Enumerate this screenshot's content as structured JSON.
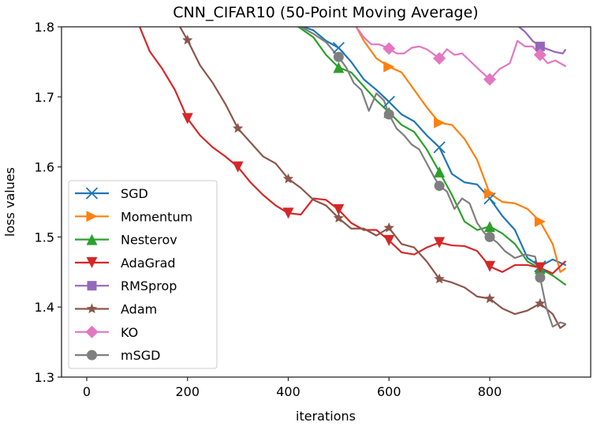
{
  "chart_data": {
    "type": "line",
    "title": "CNN_CIFAR10 (50-Point Moving Average)",
    "xlabel": "iterations",
    "ylabel": "loss values",
    "xlim": [
      -50,
      1000
    ],
    "ylim": [
      1.3,
      1.8
    ],
    "xticks": [
      0,
      200,
      400,
      600,
      800
    ],
    "xtick_labels": [
      "0",
      "200",
      "400",
      "600",
      "800"
    ],
    "yticks": [
      1.3,
      1.4,
      1.5,
      1.6,
      1.7,
      1.8
    ],
    "ytick_labels": [
      "1.3",
      "1.4",
      "1.5",
      "1.6",
      "1.7",
      "1.8"
    ],
    "grid": false,
    "legend_position": "lower-left",
    "series": [
      {
        "name": "SGD",
        "color": "#1f77b4",
        "marker": "x",
        "x": [
          430,
          450,
          475,
          500,
          525,
          550,
          575,
          600,
          625,
          650,
          675,
          700,
          725,
          750,
          775,
          800,
          825,
          850,
          875,
          900,
          925,
          950
        ],
        "y": [
          1.8,
          1.795,
          1.78,
          1.77,
          1.75,
          1.725,
          1.71,
          1.693,
          1.675,
          1.665,
          1.645,
          1.628,
          1.59,
          1.578,
          1.575,
          1.555,
          1.53,
          1.51,
          1.47,
          1.458,
          1.468,
          1.46
        ],
        "markers_x": [
          500,
          600,
          700,
          800,
          900
        ]
      },
      {
        "name": "Momentum",
        "color": "#ff7f0e",
        "marker": ">",
        "x": [
          535,
          550,
          575,
          600,
          625,
          650,
          675,
          700,
          725,
          750,
          775,
          800,
          825,
          850,
          875,
          900,
          925,
          940,
          950
        ],
        "y": [
          1.8,
          1.78,
          1.755,
          1.743,
          1.735,
          1.71,
          1.685,
          1.663,
          1.66,
          1.64,
          1.61,
          1.562,
          1.55,
          1.548,
          1.54,
          1.522,
          1.49,
          1.45,
          1.455
        ],
        "markers_x": [
          600,
          700,
          800,
          900
        ]
      },
      {
        "name": "Nesterov",
        "color": "#2ca02c",
        "marker": "^",
        "x": [
          420,
          450,
          475,
          500,
          525,
          550,
          575,
          600,
          625,
          650,
          675,
          700,
          725,
          750,
          775,
          800,
          825,
          850,
          875,
          900,
          925,
          950
        ],
        "y": [
          1.8,
          1.785,
          1.76,
          1.742,
          1.735,
          1.715,
          1.695,
          1.678,
          1.66,
          1.65,
          1.625,
          1.593,
          1.56,
          1.522,
          1.51,
          1.515,
          1.505,
          1.49,
          1.465,
          1.455,
          1.445,
          1.432
        ],
        "markers_x": [
          500,
          600,
          700,
          800,
          900
        ]
      },
      {
        "name": "AdaGrad",
        "color": "#d62728",
        "marker": "v",
        "x": [
          105,
          125,
          150,
          175,
          200,
          225,
          250,
          275,
          300,
          325,
          350,
          375,
          400,
          425,
          450,
          475,
          500,
          525,
          550,
          575,
          600,
          625,
          650,
          675,
          700,
          725,
          750,
          775,
          800,
          825,
          850,
          875,
          900,
          925,
          950
        ],
        "y": [
          1.8,
          1.765,
          1.74,
          1.71,
          1.669,
          1.645,
          1.628,
          1.615,
          1.6,
          1.578,
          1.56,
          1.545,
          1.534,
          1.532,
          1.555,
          1.553,
          1.539,
          1.52,
          1.51,
          1.51,
          1.495,
          1.478,
          1.475,
          1.485,
          1.492,
          1.488,
          1.487,
          1.48,
          1.458,
          1.45,
          1.46,
          1.46,
          1.456,
          1.448,
          1.465
        ],
        "markers_x": [
          200,
          300,
          400,
          500,
          600,
          700,
          800,
          900
        ]
      },
      {
        "name": "RMSprop",
        "color": "#9467bd",
        "marker": "s",
        "x": [
          858,
          870,
          885,
          900,
          915,
          930,
          945,
          950
        ],
        "y": [
          1.8,
          1.793,
          1.78,
          1.772,
          1.768,
          1.764,
          1.762,
          1.767
        ],
        "markers_x": [
          900
        ]
      },
      {
        "name": "Adam",
        "color": "#8c564b",
        "marker": "*",
        "x": [
          185,
          200,
          225,
          250,
          275,
          300,
          325,
          350,
          375,
          400,
          425,
          450,
          475,
          500,
          525,
          550,
          575,
          600,
          625,
          650,
          675,
          700,
          725,
          750,
          775,
          800,
          825,
          850,
          875,
          900,
          925,
          940,
          950
        ],
        "y": [
          1.8,
          1.781,
          1.745,
          1.72,
          1.69,
          1.655,
          1.635,
          1.615,
          1.605,
          1.583,
          1.57,
          1.553,
          1.545,
          1.527,
          1.512,
          1.512,
          1.502,
          1.513,
          1.49,
          1.485,
          1.465,
          1.44,
          1.435,
          1.428,
          1.415,
          1.412,
          1.398,
          1.39,
          1.395,
          1.405,
          1.39,
          1.37,
          1.375
        ],
        "markers_x": [
          200,
          300,
          400,
          500,
          600,
          700,
          800,
          900
        ]
      },
      {
        "name": "KO",
        "color": "#e377c2",
        "marker": "D",
        "x": [
          535,
          550,
          565,
          580,
          600,
          615,
          630,
          645,
          660,
          675,
          700,
          715,
          730,
          745,
          760,
          780,
          800,
          820,
          840,
          855,
          870,
          885,
          900,
          915,
          930,
          950
        ],
        "y": [
          1.8,
          1.785,
          1.775,
          1.775,
          1.769,
          1.762,
          1.762,
          1.77,
          1.772,
          1.768,
          1.755,
          1.768,
          1.76,
          1.762,
          1.752,
          1.738,
          1.725,
          1.74,
          1.748,
          1.78,
          1.772,
          1.772,
          1.76,
          1.748,
          1.752,
          1.744
        ],
        "markers_x": [
          600,
          700,
          800,
          900
        ]
      },
      {
        "name": "mSGD",
        "color": "#7f7f7f",
        "marker": "o",
        "x": [
          425,
          450,
          475,
          500,
          515,
          530,
          545,
          560,
          575,
          590,
          600,
          615,
          630,
          645,
          660,
          675,
          690,
          700,
          715,
          730,
          745,
          760,
          775,
          790,
          800,
          815,
          830,
          850,
          870,
          890,
          900,
          912,
          925,
          940,
          950
        ],
        "y": [
          1.8,
          1.79,
          1.778,
          1.757,
          1.742,
          1.72,
          1.71,
          1.68,
          1.705,
          1.695,
          1.675,
          1.655,
          1.645,
          1.632,
          1.625,
          1.605,
          1.585,
          1.573,
          1.565,
          1.54,
          1.555,
          1.548,
          1.52,
          1.505,
          1.5,
          1.492,
          1.48,
          1.47,
          1.475,
          1.472,
          1.442,
          1.4,
          1.372,
          1.378,
          1.376
        ],
        "markers_x": [
          500,
          600,
          700,
          800,
          900
        ]
      }
    ]
  }
}
